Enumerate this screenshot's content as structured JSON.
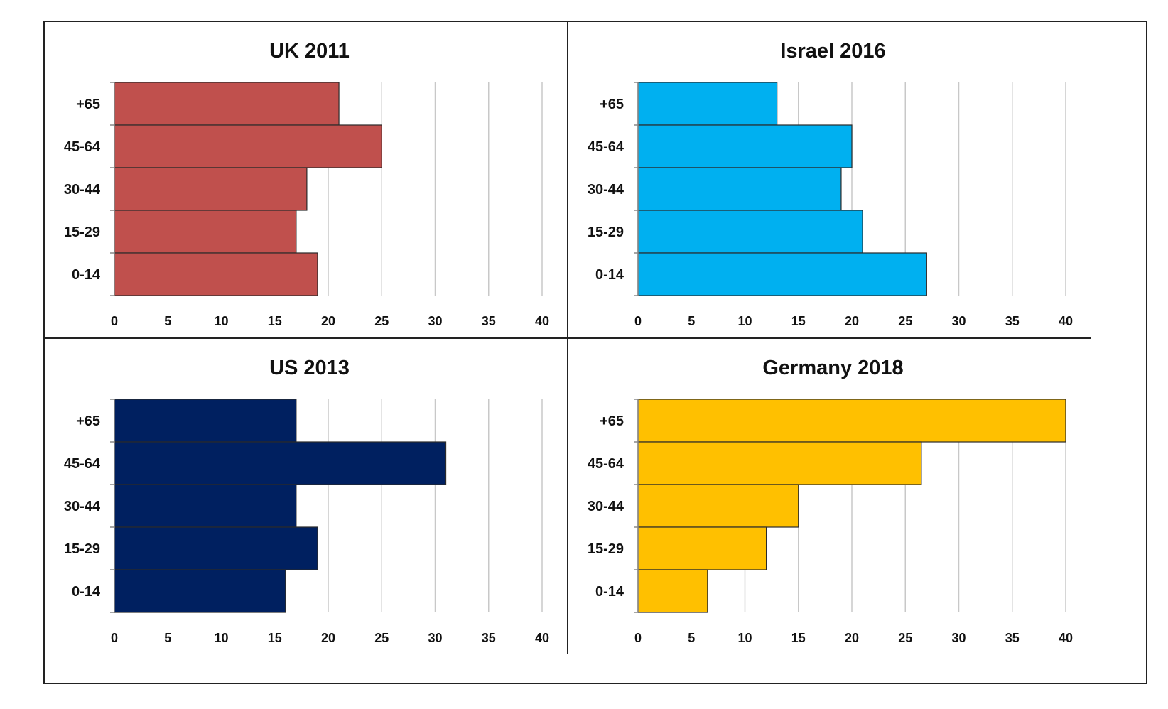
{
  "chart_data": [
    {
      "type": "bar",
      "orientation": "horizontal",
      "title": "UK 2011",
      "categories": [
        "+65",
        "45-64",
        "30-44",
        "15-29",
        "0-14"
      ],
      "values": [
        21,
        25,
        18,
        17,
        19
      ],
      "color": "#c0504d",
      "xlim": [
        0,
        40
      ],
      "xticks": [
        0,
        5,
        10,
        15,
        20,
        25,
        30,
        35,
        40
      ],
      "grid": "vertical"
    },
    {
      "type": "bar",
      "orientation": "horizontal",
      "title": "Israel 2016",
      "categories": [
        "+65",
        "45-64",
        "30-44",
        "15-29",
        "0-14"
      ],
      "values": [
        13,
        20,
        19,
        21,
        27
      ],
      "color": "#00b0f0",
      "xlim": [
        0,
        40
      ],
      "xticks": [
        0,
        5,
        10,
        15,
        20,
        25,
        30,
        35,
        40
      ],
      "grid": "vertical"
    },
    {
      "type": "bar",
      "orientation": "horizontal",
      "title": "US 2013",
      "categories": [
        "+65",
        "45-64",
        "30-44",
        "15-29",
        "0-14"
      ],
      "values": [
        17,
        31,
        17,
        19,
        16
      ],
      "color": "#002060",
      "xlim": [
        0,
        40
      ],
      "xticks": [
        0,
        5,
        10,
        15,
        20,
        25,
        30,
        35,
        40
      ],
      "grid": "vertical"
    },
    {
      "type": "bar",
      "orientation": "horizontal",
      "title": "Germany 2018",
      "categories": [
        "+65",
        "45-64",
        "30-44",
        "15-29",
        "0-14"
      ],
      "values": [
        40,
        26.5,
        15,
        12,
        6.5
      ],
      "color": "#ffc000",
      "xlim": [
        0,
        40
      ],
      "xticks": [
        0,
        5,
        10,
        15,
        20,
        25,
        30,
        35,
        40
      ],
      "grid": "vertical"
    }
  ]
}
